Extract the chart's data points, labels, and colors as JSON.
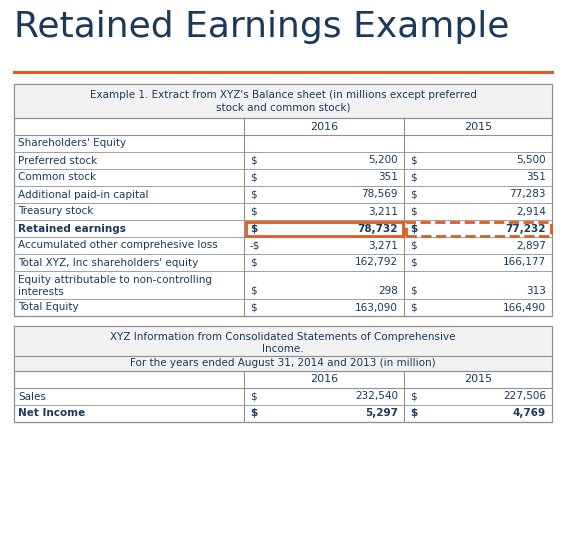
{
  "title": "Retained Earnings Example",
  "title_color": "#1a3a5c",
  "accent_color": "#e05c20",
  "bg_color": "#ffffff",
  "table1_header_line1": "Example 1. Extract from XYZ's Balance sheet (in millions except preferred",
  "table1_header_line2": "stock and common stock)",
  "table1_rows": [
    {
      "label": "Shareholders' Equity",
      "sym2016": "",
      "val2016": "",
      "sym2015": "",
      "val2015": "",
      "bold": false,
      "multiline": false
    },
    {
      "label": "Preferred stock",
      "sym2016": "$",
      "val2016": "5,200",
      "sym2015": "$",
      "val2015": "5,500",
      "bold": false,
      "multiline": false
    },
    {
      "label": "Common stock",
      "sym2016": "$",
      "val2016": "351",
      "sym2015": "$",
      "val2015": "351",
      "bold": false,
      "multiline": false
    },
    {
      "label": "Additional paid-in capital",
      "sym2016": "$",
      "val2016": "78,569",
      "sym2015": "$",
      "val2015": "77,283",
      "bold": false,
      "multiline": false
    },
    {
      "label": "Treasury stock",
      "sym2016": "$",
      "val2016": "3,211",
      "sym2015": "$",
      "val2015": "2,914",
      "bold": false,
      "multiline": false
    },
    {
      "label": "Retained earnings",
      "sym2016": "$",
      "val2016": "78,732",
      "sym2015": "$",
      "val2015": "77,232",
      "bold": true,
      "multiline": false,
      "hl16": "solid",
      "hl15": "dashed"
    },
    {
      "label": "Accumulated other comprehesive loss",
      "sym2016": "-$",
      "val2016": "3,271",
      "sym2015": "$",
      "val2015": "2,897",
      "bold": false,
      "multiline": false
    },
    {
      "label": "Total XYZ, Inc shareholders' equity",
      "sym2016": "$",
      "val2016": "162,792",
      "sym2015": "$",
      "val2015": "166,177",
      "bold": false,
      "multiline": false
    },
    {
      "label": "Equity attributable to non-controlling",
      "label2": "interests",
      "sym2016": "$",
      "val2016": "298",
      "sym2015": "$",
      "val2015": "313",
      "bold": false,
      "multiline": true
    },
    {
      "label": "Total Equity",
      "sym2016": "$",
      "val2016": "163,090",
      "sym2015": "$",
      "val2015": "166,490",
      "bold": false,
      "multiline": false
    }
  ],
  "table2_header_line1": "XYZ Information from Consolidated Statements of Comprehensive",
  "table2_header_line2": "Income.",
  "table2_subheader": "For the years ended August 31, 2014 and 2013 (in million)",
  "table2_rows": [
    {
      "label": "Sales",
      "sym2016": "$",
      "val2016": "232,540",
      "sym2015": "$",
      "val2015": "227,506",
      "bold": false
    },
    {
      "label": "Net Income",
      "sym2016": "$",
      "val2016": "5,297",
      "sym2015": "$",
      "val2015": "4,769",
      "bold": true
    }
  ],
  "text_color": "#1a3a5c",
  "border_color": "#909090",
  "highlight_color": "#e05c20",
  "fig_w": 5.66,
  "fig_h": 5.46,
  "dpi": 100
}
